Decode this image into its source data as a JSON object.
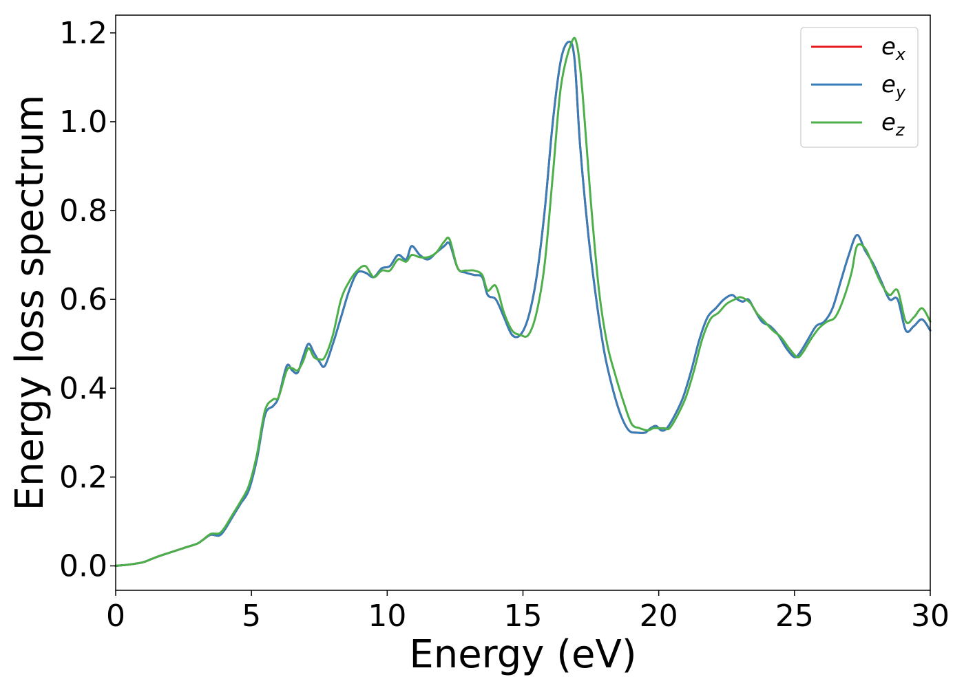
{
  "chart_data": {
    "type": "line",
    "title": "",
    "xlabel": "Energy (eV)",
    "ylabel": "Energy loss spectrum",
    "xlim": [
      0,
      30
    ],
    "ylim": [
      -0.055,
      1.24
    ],
    "xticks": [
      0,
      5,
      10,
      15,
      20,
      25,
      30
    ],
    "xtick_labels": [
      "0",
      "5",
      "10",
      "15",
      "20",
      "25",
      "30"
    ],
    "yticks": [
      0.0,
      0.2,
      0.4,
      0.6,
      0.8,
      1.0,
      1.2
    ],
    "ytick_labels": [
      "0.0",
      "0.2",
      "0.4",
      "0.6",
      "0.8",
      "1.0",
      "1.2"
    ],
    "grid": false,
    "legend_position": "top-right",
    "series": [
      {
        "name": "e_x",
        "legend_base": "e",
        "legend_sub": "x",
        "color": "#e41a1c",
        "x": [
          0,
          0.5,
          1,
          1.3,
          1.6,
          2,
          2.5,
          3,
          3.2,
          3.5,
          3.8,
          4,
          4.3,
          4.6,
          4.9,
          5.2,
          5.5,
          5.8,
          6,
          6.3,
          6.5,
          6.7,
          6.9,
          7.1,
          7.3,
          7.5,
          7.7,
          8,
          8.3,
          8.6,
          8.9,
          9.2,
          9.5,
          9.8,
          10.1,
          10.4,
          10.7,
          10.9,
          11.2,
          11.5,
          11.8,
          12.1,
          12.3,
          12.6,
          12.9,
          13.2,
          13.5,
          13.7,
          14,
          14.3,
          14.6,
          14.9,
          15.2,
          15.5,
          15.8,
          16.1,
          16.4,
          16.7,
          16.9,
          17.1,
          17.4,
          17.7,
          18,
          18.3,
          18.6,
          18.9,
          19.2,
          19.5,
          19.7,
          19.9,
          20.1,
          20.3,
          20.6,
          20.9,
          21.2,
          21.5,
          21.8,
          22.1,
          22.4,
          22.7,
          22.9,
          23.1,
          23.3,
          23.5,
          23.8,
          24.1,
          24.4,
          24.7,
          25,
          25.2,
          25.5,
          25.8,
          26.1,
          26.4,
          26.7,
          27,
          27.3,
          27.6,
          27.9,
          28.2,
          28.5,
          28.8,
          29.1,
          29.4,
          29.7,
          30
        ],
        "y": [
          0,
          0.003,
          0.008,
          0.015,
          0.022,
          0.03,
          0.04,
          0.05,
          0.058,
          0.07,
          0.068,
          0.08,
          0.11,
          0.14,
          0.17,
          0.24,
          0.34,
          0.36,
          0.38,
          0.45,
          0.44,
          0.435,
          0.47,
          0.5,
          0.48,
          0.46,
          0.45,
          0.5,
          0.56,
          0.62,
          0.66,
          0.66,
          0.65,
          0.67,
          0.675,
          0.7,
          0.69,
          0.72,
          0.7,
          0.69,
          0.705,
          0.72,
          0.725,
          0.67,
          0.66,
          0.655,
          0.65,
          0.61,
          0.6,
          0.56,
          0.52,
          0.52,
          0.56,
          0.65,
          0.8,
          1.0,
          1.14,
          1.18,
          1.14,
          0.95,
          0.75,
          0.6,
          0.48,
          0.4,
          0.34,
          0.305,
          0.3,
          0.3,
          0.31,
          0.315,
          0.305,
          0.31,
          0.34,
          0.38,
          0.44,
          0.51,
          0.56,
          0.58,
          0.6,
          0.61,
          0.6,
          0.595,
          0.6,
          0.58,
          0.55,
          0.54,
          0.52,
          0.49,
          0.47,
          0.48,
          0.51,
          0.54,
          0.55,
          0.58,
          0.64,
          0.7,
          0.745,
          0.71,
          0.68,
          0.64,
          0.6,
          0.6,
          0.53,
          0.54,
          0.555,
          0.53
        ]
      },
      {
        "name": "e_y",
        "legend_base": "e",
        "legend_sub": "y",
        "color": "#377eb8",
        "x": [
          0,
          0.5,
          1,
          1.3,
          1.6,
          2,
          2.5,
          3,
          3.2,
          3.5,
          3.8,
          4,
          4.3,
          4.6,
          4.9,
          5.2,
          5.5,
          5.8,
          6,
          6.3,
          6.5,
          6.7,
          6.9,
          7.1,
          7.3,
          7.5,
          7.7,
          8,
          8.3,
          8.6,
          8.9,
          9.2,
          9.5,
          9.8,
          10.1,
          10.4,
          10.7,
          10.9,
          11.2,
          11.5,
          11.8,
          12.1,
          12.3,
          12.6,
          12.9,
          13.2,
          13.5,
          13.7,
          14,
          14.3,
          14.6,
          14.9,
          15.2,
          15.5,
          15.8,
          16.1,
          16.4,
          16.7,
          16.9,
          17.1,
          17.4,
          17.7,
          18,
          18.3,
          18.6,
          18.9,
          19.2,
          19.5,
          19.7,
          19.9,
          20.1,
          20.3,
          20.6,
          20.9,
          21.2,
          21.5,
          21.8,
          22.1,
          22.4,
          22.7,
          22.9,
          23.1,
          23.3,
          23.5,
          23.8,
          24.1,
          24.4,
          24.7,
          25,
          25.2,
          25.5,
          25.8,
          26.1,
          26.4,
          26.7,
          27,
          27.3,
          27.6,
          27.9,
          28.2,
          28.5,
          28.8,
          29.1,
          29.4,
          29.7,
          30
        ],
        "y": [
          0,
          0.003,
          0.008,
          0.015,
          0.022,
          0.03,
          0.04,
          0.05,
          0.058,
          0.07,
          0.068,
          0.08,
          0.11,
          0.14,
          0.17,
          0.24,
          0.34,
          0.36,
          0.38,
          0.45,
          0.44,
          0.435,
          0.47,
          0.5,
          0.48,
          0.46,
          0.45,
          0.5,
          0.56,
          0.62,
          0.66,
          0.66,
          0.65,
          0.67,
          0.675,
          0.7,
          0.69,
          0.72,
          0.7,
          0.69,
          0.705,
          0.72,
          0.725,
          0.67,
          0.66,
          0.655,
          0.65,
          0.61,
          0.6,
          0.56,
          0.52,
          0.52,
          0.56,
          0.65,
          0.8,
          1.0,
          1.14,
          1.18,
          1.14,
          0.95,
          0.75,
          0.6,
          0.48,
          0.4,
          0.34,
          0.305,
          0.3,
          0.3,
          0.31,
          0.315,
          0.305,
          0.31,
          0.34,
          0.38,
          0.44,
          0.51,
          0.56,
          0.58,
          0.6,
          0.61,
          0.6,
          0.595,
          0.6,
          0.58,
          0.55,
          0.54,
          0.52,
          0.49,
          0.47,
          0.48,
          0.51,
          0.54,
          0.55,
          0.58,
          0.64,
          0.7,
          0.745,
          0.71,
          0.68,
          0.64,
          0.6,
          0.6,
          0.53,
          0.54,
          0.555,
          0.53
        ]
      },
      {
        "name": "e_z",
        "legend_base": "e",
        "legend_sub": "z",
        "color": "#4daf4a",
        "x": [
          0,
          0.5,
          1,
          1.3,
          1.6,
          2,
          2.5,
          3,
          3.2,
          3.5,
          3.8,
          4,
          4.3,
          4.6,
          4.9,
          5.2,
          5.5,
          5.8,
          6,
          6.3,
          6.5,
          6.7,
          6.9,
          7.1,
          7.3,
          7.5,
          7.7,
          8,
          8.3,
          8.6,
          8.9,
          9.2,
          9.5,
          9.8,
          10.1,
          10.4,
          10.7,
          10.9,
          11.2,
          11.5,
          11.8,
          12.1,
          12.3,
          12.6,
          12.9,
          13.2,
          13.5,
          13.7,
          14,
          14.3,
          14.6,
          14.9,
          15.2,
          15.5,
          15.8,
          16.1,
          16.4,
          16.8,
          17,
          17.2,
          17.5,
          17.8,
          18.1,
          18.4,
          18.7,
          19,
          19.3,
          19.6,
          19.8,
          20,
          20.2,
          20.4,
          20.7,
          21,
          21.3,
          21.6,
          21.9,
          22.2,
          22.5,
          22.8,
          23,
          23.2,
          23.4,
          23.6,
          23.9,
          24.2,
          24.5,
          24.8,
          25.1,
          25.3,
          25.6,
          25.9,
          26.2,
          26.5,
          26.8,
          27.1,
          27.3,
          27.6,
          27.9,
          28.2,
          28.5,
          28.8,
          29.1,
          29.4,
          29.7,
          30
        ],
        "y": [
          0,
          0.003,
          0.008,
          0.015,
          0.022,
          0.03,
          0.04,
          0.05,
          0.058,
          0.072,
          0.073,
          0.085,
          0.115,
          0.145,
          0.18,
          0.25,
          0.35,
          0.375,
          0.38,
          0.44,
          0.445,
          0.44,
          0.46,
          0.49,
          0.47,
          0.465,
          0.47,
          0.52,
          0.6,
          0.64,
          0.665,
          0.675,
          0.65,
          0.665,
          0.665,
          0.69,
          0.685,
          0.7,
          0.695,
          0.695,
          0.705,
          0.73,
          0.735,
          0.67,
          0.665,
          0.665,
          0.655,
          0.62,
          0.63,
          0.57,
          0.53,
          0.52,
          0.52,
          0.57,
          0.68,
          0.88,
          1.08,
          1.18,
          1.17,
          1.06,
          0.82,
          0.62,
          0.5,
          0.43,
          0.37,
          0.32,
          0.31,
          0.305,
          0.31,
          0.31,
          0.31,
          0.31,
          0.34,
          0.38,
          0.44,
          0.51,
          0.555,
          0.57,
          0.59,
          0.6,
          0.605,
          0.6,
          0.59,
          0.57,
          0.55,
          0.53,
          0.515,
          0.49,
          0.47,
          0.48,
          0.51,
          0.535,
          0.55,
          0.56,
          0.6,
          0.66,
          0.72,
          0.715,
          0.675,
          0.635,
          0.61,
          0.62,
          0.55,
          0.56,
          0.58,
          0.55
        ]
      }
    ]
  }
}
